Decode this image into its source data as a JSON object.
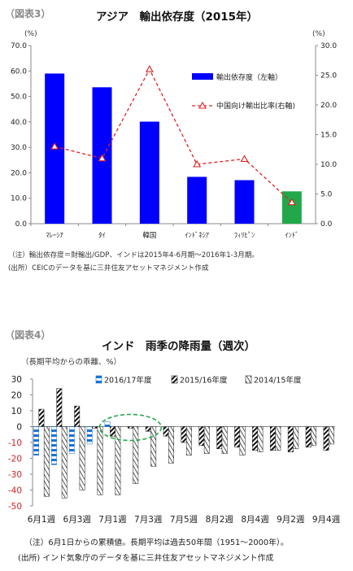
{
  "fig3": {
    "label": "（図表3）",
    "title": "アジア　輸出依存度（2015年）",
    "unit_left": "(%)",
    "unit_right": "(%)",
    "notes": [
      "（注）輸出依存度＝財輸出/GDP、インドは2015年4-6月期～2016年1-3月期。",
      "(出所）CEICのデータを基に三井住友アセットマネジメント作成"
    ]
  },
  "fig4": {
    "label": "（図表4）",
    "title": "インド　雨季の降雨量（週次）",
    "subtitle": "（長期平均からの乖離、%）",
    "notes": [
      "（注）6月1日からの累積値。長期平均は過去50年間（1951～2000年）。",
      "(出所) インド気象庁のデータを基に三井住友アセットマネジメント作成"
    ]
  },
  "chart_data": [
    {
      "type": "bar",
      "categories": [
        "ﾏﾚｰｼｱ",
        "ﾀｲ",
        "韓国",
        "ｲﾝﾄﾞﾈｼｱ",
        "ﾌｨﾘﾋﾟﾝ",
        "ｲﾝﾄﾞ"
      ],
      "series": [
        {
          "name": "輸出依存度（左軸）",
          "type": "bar",
          "axis": "left",
          "values": [
            59.0,
            53.6,
            40.1,
            18.4,
            17.1,
            12.7
          ],
          "color": "#0000ff",
          "highlight_color": "#22a84a",
          "highlight_index": 5
        },
        {
          "name": "中国向け輸出比率(右軸)",
          "type": "line",
          "axis": "right",
          "values": [
            13.0,
            11.0,
            26.0,
            10.0,
            10.9,
            3.6
          ],
          "color": "#e02020"
        }
      ],
      "ylim_left": [
        0,
        70
      ],
      "yticks_left": [
        "0.0",
        "10.0",
        "20.0",
        "30.0",
        "40.0",
        "50.0",
        "60.0",
        "70.0"
      ],
      "ylim_right": [
        0,
        30
      ],
      "yticks_right": [
        "0.0",
        "5.0",
        "10.0",
        "15.0",
        "20.0",
        "25.0",
        "30.0"
      ],
      "grid": false,
      "legend": "right"
    },
    {
      "type": "bar",
      "x_labels": [
        "6月1週",
        "6月3週",
        "7月1週",
        "7月3週",
        "7月5週",
        "8月2週",
        "8月4週",
        "9月2週",
        "9月4週"
      ],
      "ylim": [
        -50,
        30
      ],
      "yticks": [
        "30",
        "20",
        "10",
        "0",
        "-10",
        "-20",
        "-30",
        "-40",
        "-50"
      ],
      "series": [
        {
          "name": "2016/17年度",
          "values": [
            -18,
            -24,
            -17,
            -11,
            3,
            null,
            null,
            null,
            null,
            null,
            null,
            null,
            null,
            null,
            null,
            null,
            null
          ]
        },
        {
          "name": "2015/16年度",
          "values": [
            11,
            24,
            13,
            -1,
            -6,
            -1,
            -3,
            -6,
            -10,
            -12,
            -14,
            -13,
            -15,
            -15,
            -16,
            -13,
            -15
          ]
        },
        {
          "name": "2014/15年度",
          "values": [
            -44,
            -45,
            -40,
            -43,
            -43,
            -36,
            -25,
            -23,
            -18,
            -17,
            -17,
            -18,
            -16,
            -15,
            -14,
            -12,
            -11
          ]
        }
      ],
      "legend": "top",
      "grid": false,
      "annotation": "dashed green ellipse around late-June/early-July 2016/17 bars"
    }
  ]
}
